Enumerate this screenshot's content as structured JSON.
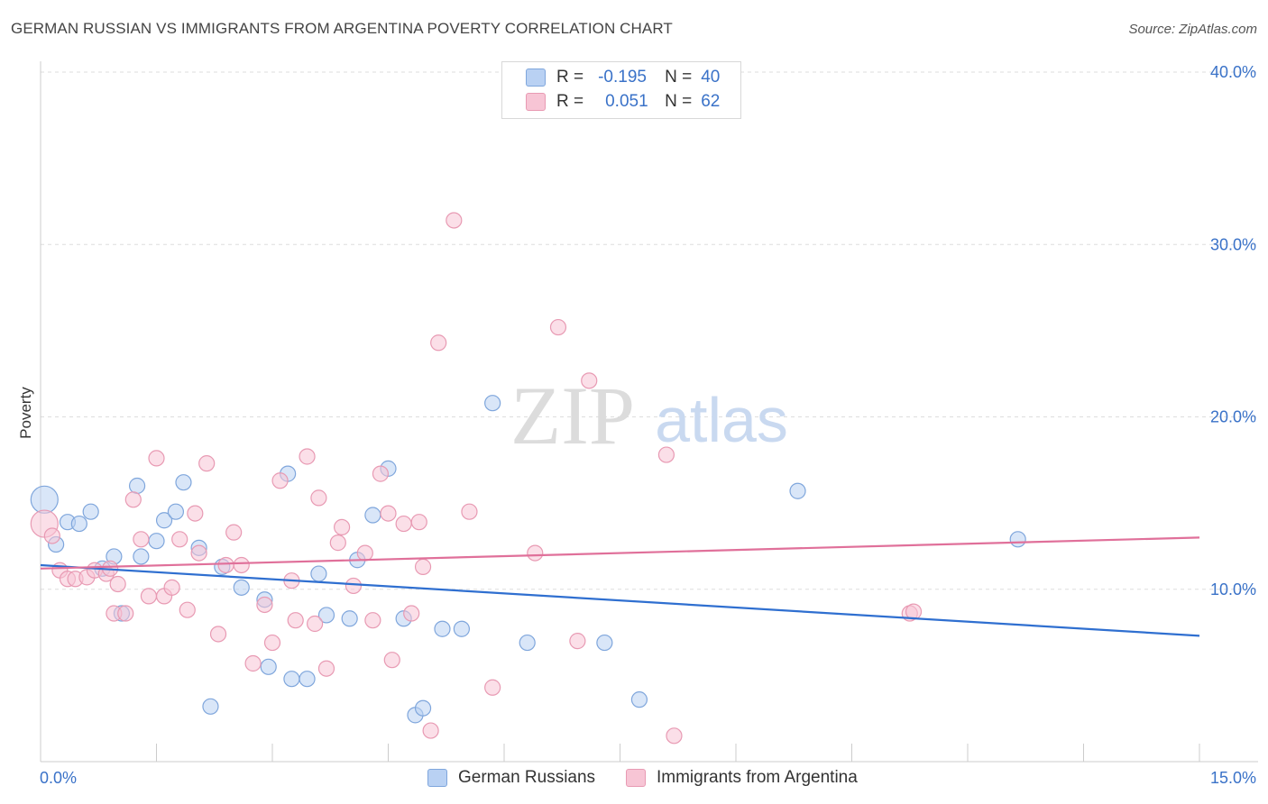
{
  "header": {
    "title": "GERMAN RUSSIAN VS IMMIGRANTS FROM ARGENTINA POVERTY CORRELATION CHART",
    "source": "Source: ZipAtlas.com"
  },
  "legend": {
    "rows": [
      {
        "r_label": "R =",
        "r_value": "-0.195",
        "n_label": "N =",
        "n_value": "40"
      },
      {
        "r_label": "R =",
        "r_value": "0.051",
        "n_label": "N =",
        "n_value": "62"
      }
    ]
  },
  "watermark": {
    "zip": "ZIP",
    "atlas": "atlas"
  },
  "colors": {
    "blue_fill": "#b9d1f3",
    "blue_stroke": "#7fa6dc",
    "blue_line": "#2f6fd0",
    "pink_fill": "#f7c5d5",
    "pink_stroke": "#e89ab3",
    "pink_line": "#e0709a",
    "axis_label": "#3a72c8",
    "grid": "#dddddd"
  },
  "chart_data": {
    "type": "scatter",
    "title": "GERMAN RUSSIAN VS IMMIGRANTS FROM ARGENTINA POVERTY CORRELATION CHART",
    "xlabel": "",
    "ylabel": "Poverty",
    "xlim": [
      0,
      15
    ],
    "ylim": [
      0,
      40
    ],
    "x_tick_labels": [
      "0.0%",
      "15.0%"
    ],
    "y_tick_labels": [
      "10.0%",
      "20.0%",
      "30.0%",
      "40.0%"
    ],
    "y_ticks": [
      10,
      20,
      30,
      40
    ],
    "grid": true,
    "series": [
      {
        "name": "German Russians",
        "color": "blue",
        "trend": {
          "x": [
            0,
            15
          ],
          "y": [
            11.4,
            7.3
          ]
        },
        "points": [
          {
            "x": 0.05,
            "y": 15.2,
            "big": true
          },
          {
            "x": 0.2,
            "y": 12.6
          },
          {
            "x": 0.35,
            "y": 13.9
          },
          {
            "x": 0.5,
            "y": 13.8
          },
          {
            "x": 0.65,
            "y": 14.5
          },
          {
            "x": 0.8,
            "y": 11.2
          },
          {
            "x": 0.95,
            "y": 11.9
          },
          {
            "x": 1.05,
            "y": 8.6
          },
          {
            "x": 1.25,
            "y": 16.0
          },
          {
            "x": 1.3,
            "y": 11.9
          },
          {
            "x": 1.5,
            "y": 12.8
          },
          {
            "x": 1.6,
            "y": 14.0
          },
          {
            "x": 1.75,
            "y": 14.5
          },
          {
            "x": 1.85,
            "y": 16.2
          },
          {
            "x": 2.05,
            "y": 12.4
          },
          {
            "x": 2.2,
            "y": 3.2
          },
          {
            "x": 2.35,
            "y": 11.3
          },
          {
            "x": 2.6,
            "y": 10.1
          },
          {
            "x": 2.9,
            "y": 9.4
          },
          {
            "x": 2.95,
            "y": 5.5
          },
          {
            "x": 3.2,
            "y": 16.7
          },
          {
            "x": 3.25,
            "y": 4.8
          },
          {
            "x": 3.45,
            "y": 4.8
          },
          {
            "x": 3.6,
            "y": 10.9
          },
          {
            "x": 3.7,
            "y": 8.5
          },
          {
            "x": 4.0,
            "y": 8.3
          },
          {
            "x": 4.1,
            "y": 11.7
          },
          {
            "x": 4.3,
            "y": 14.3
          },
          {
            "x": 4.5,
            "y": 17.0
          },
          {
            "x": 4.7,
            "y": 8.3
          },
          {
            "x": 4.85,
            "y": 2.7
          },
          {
            "x": 4.95,
            "y": 3.1
          },
          {
            "x": 5.2,
            "y": 7.7
          },
          {
            "x": 5.45,
            "y": 7.7
          },
          {
            "x": 5.85,
            "y": 20.8
          },
          {
            "x": 6.3,
            "y": 6.9
          },
          {
            "x": 7.3,
            "y": 6.9
          },
          {
            "x": 7.75,
            "y": 3.6
          },
          {
            "x": 9.8,
            "y": 15.7
          },
          {
            "x": 12.65,
            "y": 12.9
          }
        ]
      },
      {
        "name": "Immigrants from Argentina",
        "color": "pink",
        "trend": {
          "x": [
            0,
            15
          ],
          "y": [
            11.2,
            13.0
          ]
        },
        "points": [
          {
            "x": 0.05,
            "y": 13.8,
            "big": true
          },
          {
            "x": 0.15,
            "y": 13.1
          },
          {
            "x": 0.25,
            "y": 11.1
          },
          {
            "x": 0.35,
            "y": 10.6
          },
          {
            "x": 0.45,
            "y": 10.6
          },
          {
            "x": 0.6,
            "y": 10.7
          },
          {
            "x": 0.7,
            "y": 11.1
          },
          {
            "x": 0.85,
            "y": 10.9
          },
          {
            "x": 0.9,
            "y": 11.2
          },
          {
            "x": 0.95,
            "y": 8.6
          },
          {
            "x": 1.0,
            "y": 10.3
          },
          {
            "x": 1.1,
            "y": 8.6
          },
          {
            "x": 1.2,
            "y": 15.2
          },
          {
            "x": 1.3,
            "y": 12.9
          },
          {
            "x": 1.4,
            "y": 9.6
          },
          {
            "x": 1.5,
            "y": 17.6
          },
          {
            "x": 1.6,
            "y": 9.6
          },
          {
            "x": 1.7,
            "y": 10.1
          },
          {
            "x": 1.8,
            "y": 12.9
          },
          {
            "x": 1.9,
            "y": 8.8
          },
          {
            "x": 2.0,
            "y": 14.4
          },
          {
            "x": 2.05,
            "y": 12.1
          },
          {
            "x": 2.15,
            "y": 17.3
          },
          {
            "x": 2.3,
            "y": 7.4
          },
          {
            "x": 2.4,
            "y": 11.4
          },
          {
            "x": 2.5,
            "y": 13.3
          },
          {
            "x": 2.6,
            "y": 11.4
          },
          {
            "x": 2.75,
            "y": 5.7
          },
          {
            "x": 2.9,
            "y": 9.1
          },
          {
            "x": 3.0,
            "y": 6.9
          },
          {
            "x": 3.1,
            "y": 16.3
          },
          {
            "x": 3.25,
            "y": 10.5
          },
          {
            "x": 3.3,
            "y": 8.2
          },
          {
            "x": 3.45,
            "y": 17.7
          },
          {
            "x": 3.55,
            "y": 8.0
          },
          {
            "x": 3.6,
            "y": 15.3
          },
          {
            "x": 3.7,
            "y": 5.4
          },
          {
            "x": 3.85,
            "y": 12.7
          },
          {
            "x": 3.9,
            "y": 13.6
          },
          {
            "x": 4.05,
            "y": 10.2
          },
          {
            "x": 4.2,
            "y": 12.1
          },
          {
            "x": 4.3,
            "y": 8.2
          },
          {
            "x": 4.4,
            "y": 16.7
          },
          {
            "x": 4.5,
            "y": 14.4
          },
          {
            "x": 4.55,
            "y": 5.9
          },
          {
            "x": 4.7,
            "y": 13.8
          },
          {
            "x": 4.8,
            "y": 8.6
          },
          {
            "x": 4.9,
            "y": 13.9
          },
          {
            "x": 4.95,
            "y": 11.3
          },
          {
            "x": 5.05,
            "y": 1.8
          },
          {
            "x": 5.15,
            "y": 24.3
          },
          {
            "x": 5.35,
            "y": 31.4
          },
          {
            "x": 5.55,
            "y": 14.5
          },
          {
            "x": 5.85,
            "y": 4.3
          },
          {
            "x": 6.4,
            "y": 12.1
          },
          {
            "x": 6.7,
            "y": 25.2
          },
          {
            "x": 6.95,
            "y": 7.0
          },
          {
            "x": 7.1,
            "y": 22.1
          },
          {
            "x": 8.1,
            "y": 17.8
          },
          {
            "x": 8.2,
            "y": 1.5
          },
          {
            "x": 11.25,
            "y": 8.6
          },
          {
            "x": 11.3,
            "y": 8.7
          }
        ]
      }
    ]
  }
}
